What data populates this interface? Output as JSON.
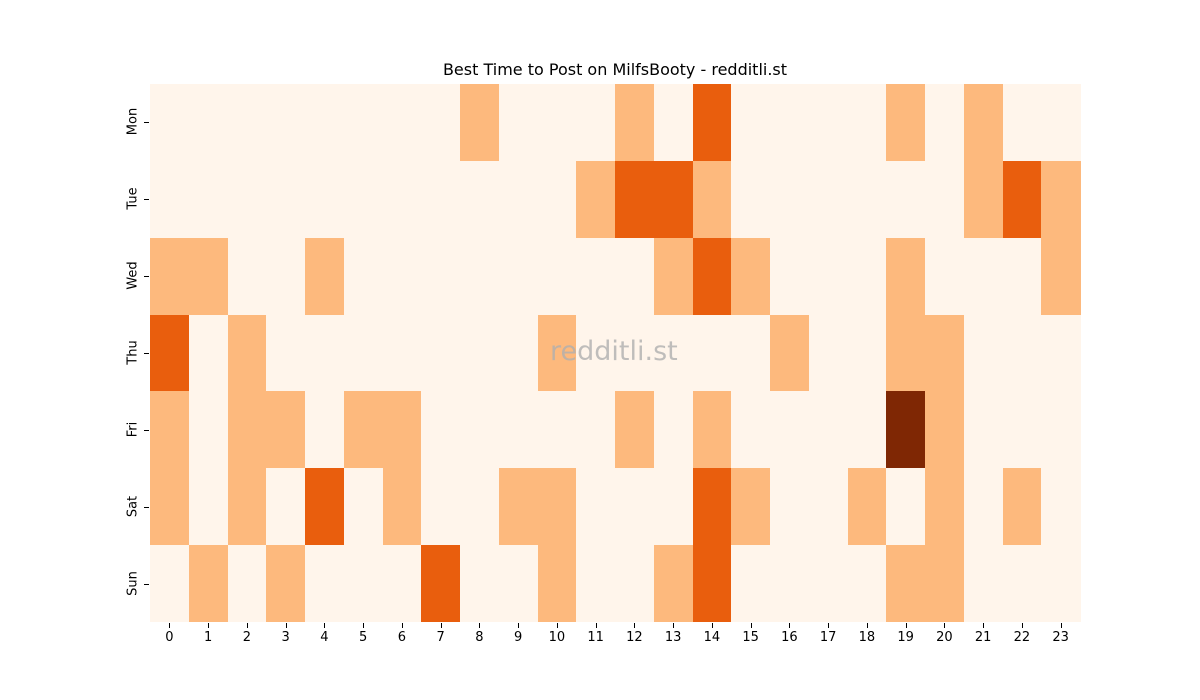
{
  "chart_data": {
    "type": "heatmap",
    "title": "Best Time to Post on MilfsBooty - redditli.st",
    "xlabel": "",
    "ylabel": "",
    "x": [
      "0",
      "1",
      "2",
      "3",
      "4",
      "5",
      "6",
      "7",
      "8",
      "9",
      "10",
      "11",
      "12",
      "13",
      "14",
      "15",
      "16",
      "17",
      "18",
      "19",
      "20",
      "21",
      "22",
      "23"
    ],
    "y": [
      "Mon",
      "Tue",
      "Wed",
      "Thu",
      "Fri",
      "Sat",
      "Sun"
    ],
    "colormap": "Oranges",
    "level_colors": [
      "#fff5eb",
      "#fdb97d",
      "#e95e0d",
      "#7f2704"
    ],
    "values": [
      [
        0,
        0,
        0,
        0,
        0,
        0,
        0,
        0,
        1,
        0,
        0,
        0,
        1,
        0,
        2,
        0,
        0,
        0,
        0,
        1,
        0,
        1,
        0,
        0
      ],
      [
        0,
        0,
        0,
        0,
        0,
        0,
        0,
        0,
        0,
        0,
        0,
        1,
        2,
        2,
        1,
        0,
        0,
        0,
        0,
        0,
        0,
        1,
        2,
        1
      ],
      [
        1,
        1,
        0,
        0,
        1,
        0,
        0,
        0,
        0,
        0,
        0,
        0,
        0,
        1,
        2,
        1,
        0,
        0,
        0,
        1,
        0,
        0,
        0,
        1
      ],
      [
        2,
        0,
        1,
        0,
        0,
        0,
        0,
        0,
        0,
        0,
        1,
        0,
        0,
        0,
        0,
        0,
        1,
        0,
        0,
        1,
        1,
        0,
        0,
        0
      ],
      [
        1,
        0,
        1,
        1,
        0,
        1,
        1,
        0,
        0,
        0,
        0,
        0,
        1,
        0,
        1,
        0,
        0,
        0,
        0,
        3,
        1,
        0,
        0,
        0
      ],
      [
        1,
        0,
        1,
        0,
        2,
        0,
        1,
        0,
        0,
        1,
        1,
        0,
        0,
        0,
        2,
        1,
        0,
        0,
        1,
        0,
        1,
        0,
        1,
        0
      ],
      [
        0,
        1,
        0,
        1,
        0,
        0,
        0,
        2,
        0,
        0,
        1,
        0,
        0,
        1,
        2,
        0,
        0,
        0,
        0,
        1,
        1,
        0,
        0,
        0
      ]
    ],
    "watermark": "redditli.st",
    "grid": false,
    "legend": "none"
  }
}
